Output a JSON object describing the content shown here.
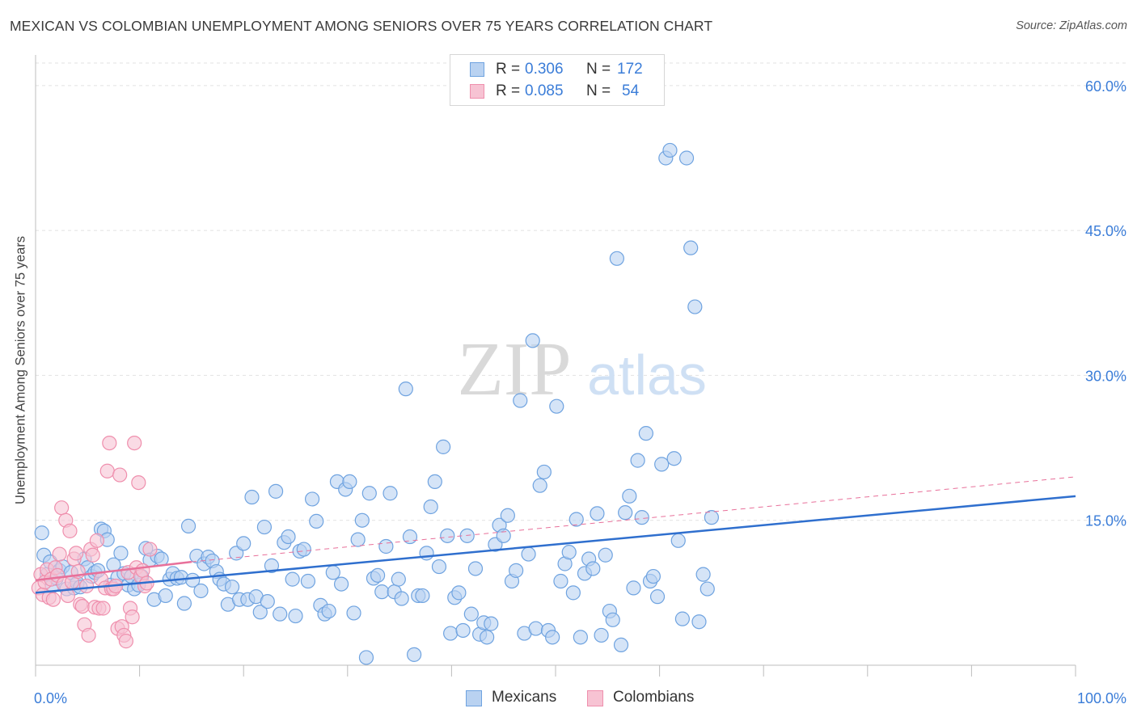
{
  "header": {
    "title": "MEXICAN VS COLOMBIAN UNEMPLOYMENT AMONG SENIORS OVER 75 YEARS CORRELATION CHART",
    "source": "Source: ZipAtlas.com"
  },
  "watermark": {
    "zip": "ZIP",
    "atlas": "atlas"
  },
  "legend_top": {
    "rows": [
      {
        "r_label": "R = ",
        "r_value": "0.306",
        "n_label": "N = ",
        "n_value": "172",
        "color": "#6fa3e0",
        "fill": "#b9d2f1"
      },
      {
        "r_label": "R = ",
        "r_value": "0.085",
        "n_label": "N = ",
        "n_value": "54",
        "color": "#ef8fad",
        "fill": "#f7c3d3"
      }
    ]
  },
  "legend_bottom": {
    "items": [
      {
        "label": "Mexicans",
        "color": "#6fa3e0",
        "fill": "#b9d2f1"
      },
      {
        "label": "Colombians",
        "color": "#ef8fad",
        "fill": "#f7c3d3"
      }
    ]
  },
  "chart_data": {
    "type": "scatter",
    "title": "MEXICAN VS COLOMBIAN UNEMPLOYMENT AMONG SENIORS OVER 75 YEARS CORRELATION CHART",
    "xlabel": "",
    "ylabel": "Unemployment Among Seniors over 75 years",
    "xlim": [
      0,
      100
    ],
    "ylim": [
      0,
      63
    ],
    "x_tick_labels": [
      "0.0%",
      "100.0%"
    ],
    "y_ticks": [
      15,
      30,
      45,
      60
    ],
    "y_tick_labels": [
      "15.0%",
      "30.0%",
      "45.0%",
      "60.0%"
    ],
    "grid": true,
    "legend": "top-center",
    "series": [
      {
        "name": "Mexicans",
        "color": "#6fa3e0",
        "fill": "#b9d2f1",
        "trend": {
          "x": [
            0,
            100
          ],
          "y": [
            7.5,
            17.5
          ],
          "style": "solid",
          "color": "#2f6fce"
        },
        "points": [
          [
            0.6,
            13.7
          ],
          [
            0.8,
            11.4
          ],
          [
            1.1,
            9.4
          ],
          [
            1.4,
            10.7
          ],
          [
            1.6,
            8.2
          ],
          [
            2.0,
            9.0
          ],
          [
            2.3,
            9.8
          ],
          [
            2.6,
            10.2
          ],
          [
            3.0,
            7.9
          ],
          [
            3.4,
            9.6
          ],
          [
            3.7,
            8.0
          ],
          [
            4.0,
            8.5
          ],
          [
            4.3,
            8.1
          ],
          [
            4.7,
            11.0
          ],
          [
            5.0,
            10.1
          ],
          [
            5.4,
            9.2
          ],
          [
            5.7,
            9.6
          ],
          [
            6.0,
            9.8
          ],
          [
            6.3,
            14.1
          ],
          [
            6.6,
            13.9
          ],
          [
            6.9,
            13.0
          ],
          [
            7.2,
            8.3
          ],
          [
            7.5,
            10.4
          ],
          [
            7.9,
            9.1
          ],
          [
            8.2,
            11.6
          ],
          [
            8.5,
            9.5
          ],
          [
            8.9,
            8.3
          ],
          [
            9.2,
            9.2
          ],
          [
            9.5,
            7.9
          ],
          [
            9.9,
            8.3
          ],
          [
            10.2,
            9.2
          ],
          [
            10.6,
            12.1
          ],
          [
            11.0,
            10.9
          ],
          [
            11.4,
            6.8
          ],
          [
            11.7,
            11.3
          ],
          [
            12.1,
            11.0
          ],
          [
            12.5,
            7.2
          ],
          [
            12.9,
            8.9
          ],
          [
            13.2,
            9.5
          ],
          [
            13.6,
            9.0
          ],
          [
            14.0,
            9.1
          ],
          [
            14.3,
            6.4
          ],
          [
            14.7,
            14.4
          ],
          [
            15.1,
            8.8
          ],
          [
            15.5,
            11.3
          ],
          [
            15.9,
            7.7
          ],
          [
            16.2,
            10.5
          ],
          [
            16.6,
            11.2
          ],
          [
            17.0,
            10.8
          ],
          [
            17.4,
            9.7
          ],
          [
            17.7,
            8.9
          ],
          [
            18.1,
            8.4
          ],
          [
            18.5,
            6.3
          ],
          [
            18.9,
            8.1
          ],
          [
            19.3,
            11.6
          ],
          [
            19.6,
            6.8
          ],
          [
            20.0,
            12.6
          ],
          [
            20.4,
            6.8
          ],
          [
            20.8,
            17.4
          ],
          [
            21.2,
            7.1
          ],
          [
            21.6,
            5.5
          ],
          [
            22.0,
            14.3
          ],
          [
            22.3,
            6.6
          ],
          [
            22.7,
            10.3
          ],
          [
            23.1,
            18.0
          ],
          [
            23.5,
            5.3
          ],
          [
            23.9,
            12.7
          ],
          [
            24.3,
            13.3
          ],
          [
            24.7,
            8.9
          ],
          [
            25.0,
            5.1
          ],
          [
            25.4,
            11.8
          ],
          [
            25.8,
            12.0
          ],
          [
            26.2,
            8.7
          ],
          [
            26.6,
            17.2
          ],
          [
            27.0,
            14.9
          ],
          [
            27.4,
            6.2
          ],
          [
            27.8,
            5.3
          ],
          [
            28.2,
            5.6
          ],
          [
            28.6,
            9.6
          ],
          [
            29.0,
            19.0
          ],
          [
            29.4,
            8.4
          ],
          [
            29.8,
            18.2
          ],
          [
            30.2,
            19.0
          ],
          [
            30.6,
            5.4
          ],
          [
            31.0,
            13.0
          ],
          [
            31.4,
            15.0
          ],
          [
            31.8,
            0.8
          ],
          [
            32.1,
            17.8
          ],
          [
            32.5,
            9.0
          ],
          [
            32.9,
            9.3
          ],
          [
            33.3,
            7.6
          ],
          [
            33.7,
            12.3
          ],
          [
            34.1,
            17.8
          ],
          [
            34.5,
            7.6
          ],
          [
            34.9,
            8.9
          ],
          [
            35.2,
            6.9
          ],
          [
            35.6,
            28.6
          ],
          [
            36.0,
            13.3
          ],
          [
            36.4,
            1.1
          ],
          [
            36.8,
            7.2
          ],
          [
            37.2,
            7.2
          ],
          [
            37.6,
            11.6
          ],
          [
            38.0,
            16.4
          ],
          [
            38.4,
            19.0
          ],
          [
            38.8,
            10.2
          ],
          [
            39.2,
            22.6
          ],
          [
            39.6,
            13.4
          ],
          [
            39.9,
            3.3
          ],
          [
            40.3,
            7.0
          ],
          [
            40.7,
            7.5
          ],
          [
            41.1,
            3.6
          ],
          [
            41.5,
            13.4
          ],
          [
            41.9,
            5.3
          ],
          [
            42.3,
            10.0
          ],
          [
            42.7,
            3.2
          ],
          [
            43.1,
            4.4
          ],
          [
            43.4,
            2.9
          ],
          [
            43.8,
            4.3
          ],
          [
            44.2,
            12.5
          ],
          [
            44.6,
            14.5
          ],
          [
            45.0,
            13.4
          ],
          [
            45.4,
            15.5
          ],
          [
            45.8,
            8.7
          ],
          [
            46.2,
            9.8
          ],
          [
            46.6,
            27.4
          ],
          [
            47.0,
            3.3
          ],
          [
            47.4,
            11.5
          ],
          [
            47.8,
            33.6
          ],
          [
            48.1,
            3.8
          ],
          [
            48.5,
            18.6
          ],
          [
            48.9,
            20.0
          ],
          [
            49.3,
            3.6
          ],
          [
            49.7,
            2.9
          ],
          [
            50.1,
            26.8
          ],
          [
            50.5,
            8.7
          ],
          [
            50.9,
            10.5
          ],
          [
            51.3,
            11.7
          ],
          [
            51.7,
            7.5
          ],
          [
            52.0,
            15.1
          ],
          [
            52.4,
            2.9
          ],
          [
            52.8,
            9.5
          ],
          [
            53.2,
            11.0
          ],
          [
            53.6,
            10.0
          ],
          [
            54.0,
            15.7
          ],
          [
            54.4,
            3.1
          ],
          [
            54.8,
            11.4
          ],
          [
            55.2,
            5.6
          ],
          [
            55.5,
            4.7
          ],
          [
            55.9,
            42.1
          ],
          [
            56.3,
            2.1
          ],
          [
            56.7,
            15.8
          ],
          [
            57.1,
            17.5
          ],
          [
            57.5,
            8.0
          ],
          [
            57.9,
            21.2
          ],
          [
            58.3,
            15.3
          ],
          [
            58.7,
            24.0
          ],
          [
            59.1,
            8.7
          ],
          [
            59.4,
            9.2
          ],
          [
            59.8,
            7.1
          ],
          [
            60.2,
            20.8
          ],
          [
            60.6,
            52.5
          ],
          [
            61.0,
            53.3
          ],
          [
            61.4,
            21.4
          ],
          [
            61.8,
            12.9
          ],
          [
            62.2,
            4.8
          ],
          [
            62.6,
            52.5
          ],
          [
            63.0,
            43.2
          ],
          [
            63.4,
            37.1
          ],
          [
            63.8,
            4.5
          ],
          [
            64.2,
            9.4
          ],
          [
            64.6,
            7.9
          ],
          [
            65.0,
            15.3
          ]
        ]
      },
      {
        "name": "Colombians",
        "color": "#ef8fad",
        "fill": "#f7c3d3",
        "trend_solid": {
          "x": [
            0,
            15
          ],
          "y": [
            8.8,
            10.7
          ],
          "color": "#e8709a"
        },
        "trend_dashed": {
          "x": [
            15,
            100
          ],
          "y": [
            10.7,
            19.5
          ],
          "color": "#e8709a"
        },
        "points": [
          [
            0.3,
            8.0
          ],
          [
            0.5,
            9.4
          ],
          [
            0.7,
            7.3
          ],
          [
            0.9,
            8.6
          ],
          [
            1.1,
            9.9
          ],
          [
            1.3,
            7.0
          ],
          [
            1.5,
            8.9
          ],
          [
            1.7,
            6.8
          ],
          [
            1.9,
            10.1
          ],
          [
            2.1,
            9.3
          ],
          [
            2.3,
            11.5
          ],
          [
            2.5,
            16.3
          ],
          [
            2.7,
            8.4
          ],
          [
            2.9,
            15.0
          ],
          [
            3.1,
            7.2
          ],
          [
            3.3,
            13.9
          ],
          [
            3.5,
            8.6
          ],
          [
            3.7,
            11.0
          ],
          [
            3.9,
            11.6
          ],
          [
            4.1,
            9.7
          ],
          [
            4.3,
            6.3
          ],
          [
            4.5,
            6.1
          ],
          [
            4.7,
            4.2
          ],
          [
            4.9,
            8.2
          ],
          [
            5.1,
            3.1
          ],
          [
            5.3,
            12.0
          ],
          [
            5.5,
            11.4
          ],
          [
            5.7,
            6.0
          ],
          [
            5.9,
            12.9
          ],
          [
            6.1,
            5.9
          ],
          [
            6.3,
            8.9
          ],
          [
            6.5,
            5.9
          ],
          [
            6.7,
            8.0
          ],
          [
            6.9,
            20.1
          ],
          [
            7.1,
            23.0
          ],
          [
            7.3,
            7.9
          ],
          [
            7.5,
            7.9
          ],
          [
            7.7,
            8.2
          ],
          [
            7.9,
            3.8
          ],
          [
            8.1,
            19.7
          ],
          [
            8.3,
            4.0
          ],
          [
            8.5,
            3.1
          ],
          [
            8.7,
            2.5
          ],
          [
            8.9,
            9.6
          ],
          [
            9.1,
            5.9
          ],
          [
            9.3,
            5.0
          ],
          [
            9.5,
            23.0
          ],
          [
            9.7,
            10.1
          ],
          [
            9.9,
            18.9
          ],
          [
            10.1,
            9.2
          ],
          [
            10.3,
            9.8
          ],
          [
            10.5,
            8.2
          ],
          [
            10.7,
            8.5
          ],
          [
            11.0,
            12.0
          ]
        ]
      }
    ]
  }
}
